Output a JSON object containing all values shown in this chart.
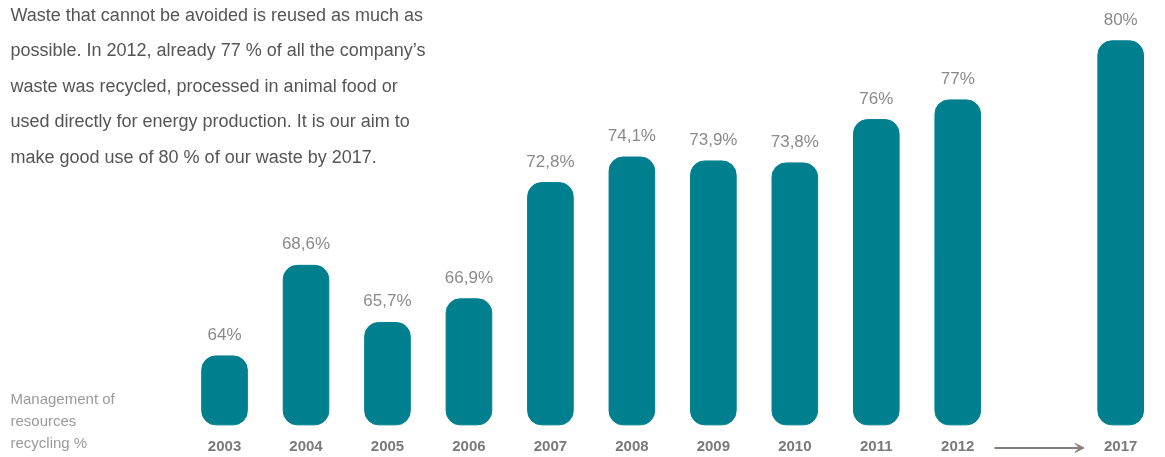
{
  "chart_data": {
    "type": "bar",
    "annotations": [
      "Waste that cannot be avoided is reused as much as\npossible. In 2012, already 77 % of all the company’s\nwaste was recycled, processed in animal food or\nused directly for energy production. It is our aim to\nmake good use of 80 % of our waste by 2017."
    ],
    "ylabel": "Management of\nresources\nrecycling %",
    "categories": [
      "2003",
      "2004",
      "2005",
      "2006",
      "2007",
      "2008",
      "2009",
      "2010",
      "2011",
      "2012",
      null,
      "2017"
    ],
    "values": [
      64,
      68.6,
      65.7,
      66.9,
      72.8,
      74.1,
      73.9,
      73.8,
      76,
      77,
      null,
      80
    ],
    "value_labels": [
      "64%",
      "68,6%",
      "65,7%",
      "66,9%",
      "72,8%",
      "74,1%",
      "73,9%",
      "73,8%",
      "76%",
      "77%",
      null,
      "80%"
    ],
    "color": "#00808f",
    "ylim": [
      60.5,
      80
    ],
    "grid": false
  }
}
